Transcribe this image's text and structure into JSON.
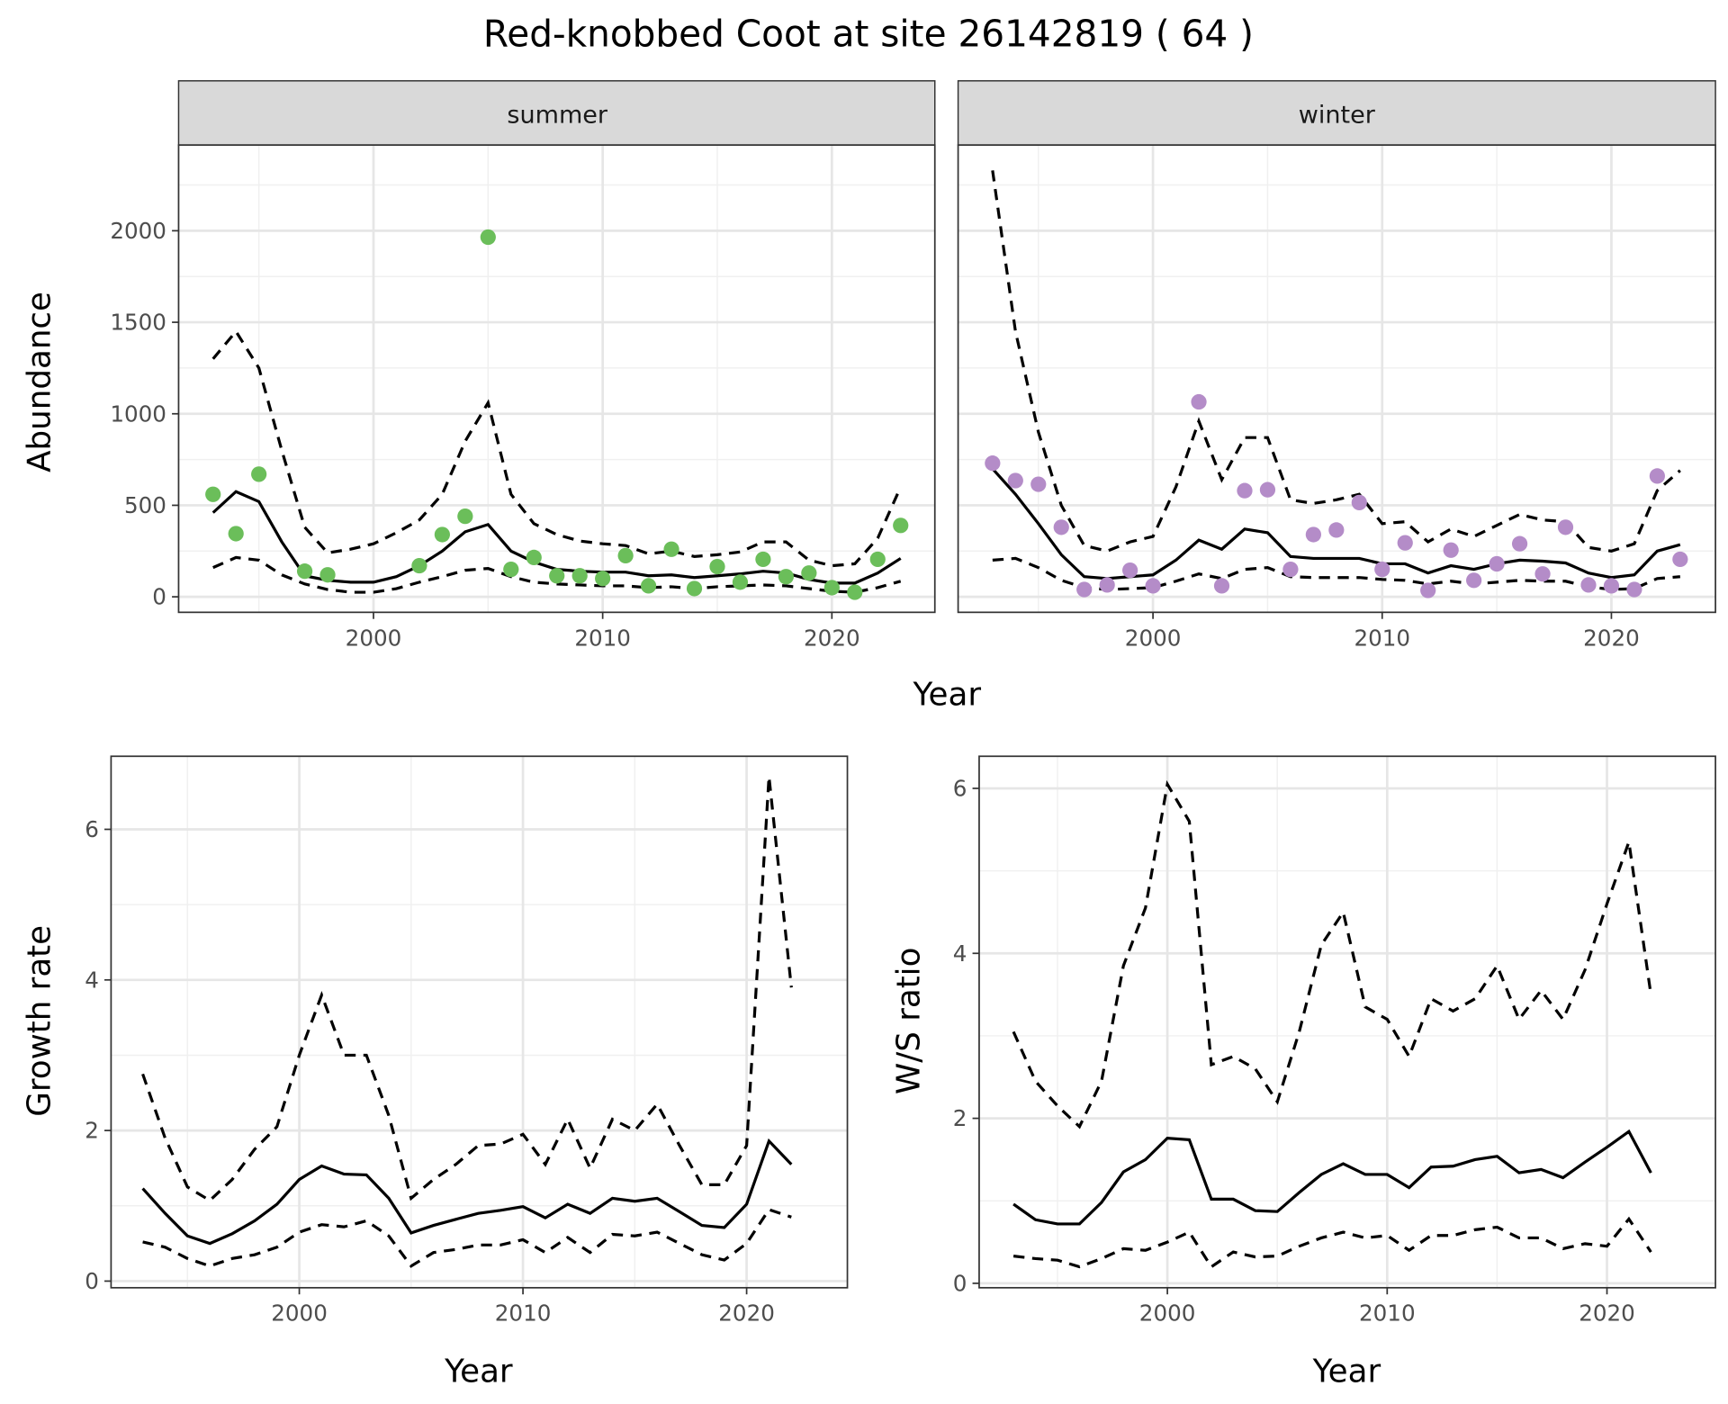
{
  "title": "Red-knobbed Coot at site 26142819 ( 64 )",
  "colors": {
    "summer": "#6BBE5A",
    "winter": "#B48CC8",
    "line": "#000000"
  },
  "chart_data": [
    {
      "type": "line+scatter",
      "facet": "summer",
      "xlabel": "Year",
      "ylabel": "Abundance",
      "x_ticks": [
        2000,
        2010,
        2020
      ],
      "y_ticks": [
        0,
        500,
        1000,
        1500,
        2000
      ],
      "years": [
        1993,
        1994,
        1995,
        1996,
        1997,
        1998,
        1999,
        2000,
        2001,
        2002,
        2003,
        2004,
        2005,
        2006,
        2007,
        2008,
        2009,
        2010,
        2011,
        2012,
        2013,
        2014,
        2015,
        2016,
        2017,
        2018,
        2019,
        2020,
        2021,
        2022,
        2023
      ],
      "mean": [
        460,
        575,
        520,
        300,
        115,
        90,
        80,
        80,
        110,
        170,
        250,
        355,
        395,
        250,
        190,
        150,
        140,
        135,
        135,
        115,
        120,
        105,
        115,
        125,
        140,
        130,
        95,
        75,
        75,
        130,
        210
      ],
      "upper": [
        1300,
        1450,
        1250,
        800,
        380,
        240,
        260,
        290,
        350,
        420,
        560,
        850,
        1060,
        560,
        400,
        340,
        305,
        290,
        280,
        235,
        250,
        220,
        230,
        245,
        300,
        300,
        200,
        170,
        180,
        320,
        600
      ],
      "lower": [
        160,
        215,
        200,
        120,
        70,
        40,
        25,
        25,
        45,
        80,
        110,
        145,
        155,
        110,
        80,
        70,
        65,
        60,
        60,
        50,
        55,
        45,
        55,
        60,
        65,
        60,
        45,
        30,
        25,
        50,
        85
      ],
      "points": {
        "years": [
          1993,
          1994,
          1995,
          1997,
          1998,
          2002,
          2003,
          2004,
          2005,
          2006,
          2007,
          2008,
          2009,
          2010,
          2011,
          2012,
          2013,
          2014,
          2015,
          2016,
          2017,
          2018,
          2019,
          2020,
          2021,
          2022,
          2023
        ],
        "values": [
          560,
          345,
          670,
          140,
          120,
          170,
          340,
          440,
          1965,
          150,
          215,
          115,
          115,
          100,
          225,
          60,
          260,
          45,
          165,
          80,
          205,
          110,
          130,
          50,
          25,
          205,
          390
        ]
      }
    },
    {
      "type": "line+scatter",
      "facet": "winter",
      "xlabel": "Year",
      "ylabel": "Abundance",
      "x_ticks": [
        2000,
        2010,
        2020
      ],
      "y_ticks": [
        0,
        500,
        1000,
        1500,
        2000
      ],
      "years": [
        1993,
        1994,
        1995,
        1996,
        1997,
        1998,
        1999,
        2000,
        2001,
        2002,
        2003,
        2004,
        2005,
        2006,
        2007,
        2008,
        2009,
        2010,
        2011,
        2012,
        2013,
        2014,
        2015,
        2016,
        2017,
        2018,
        2019,
        2020,
        2021,
        2022,
        2023
      ],
      "mean": [
        700,
        560,
        400,
        230,
        110,
        100,
        110,
        120,
        200,
        310,
        260,
        370,
        350,
        220,
        210,
        210,
        210,
        180,
        180,
        130,
        170,
        150,
        180,
        200,
        195,
        185,
        130,
        105,
        120,
        250,
        285
      ],
      "upper": [
        2330,
        1450,
        900,
        500,
        280,
        250,
        300,
        330,
        600,
        960,
        640,
        870,
        870,
        530,
        510,
        530,
        560,
        400,
        410,
        300,
        370,
        330,
        390,
        450,
        420,
        410,
        270,
        250,
        290,
        580,
        690
      ],
      "lower": [
        200,
        210,
        160,
        90,
        50,
        40,
        45,
        50,
        85,
        125,
        100,
        150,
        160,
        110,
        105,
        105,
        105,
        95,
        90,
        70,
        85,
        70,
        80,
        90,
        85,
        85,
        55,
        40,
        45,
        100,
        110
      ],
      "points": {
        "years": [
          1993,
          1994,
          1995,
          1996,
          1997,
          1998,
          1999,
          2000,
          2002,
          2003,
          2004,
          2005,
          2006,
          2007,
          2008,
          2009,
          2010,
          2011,
          2012,
          2013,
          2014,
          2015,
          2016,
          2017,
          2018,
          2019,
          2020,
          2021,
          2022,
          2023
        ],
        "values": [
          730,
          635,
          615,
          380,
          40,
          65,
          145,
          60,
          1065,
          60,
          580,
          585,
          150,
          340,
          365,
          515,
          150,
          295,
          35,
          255,
          90,
          180,
          290,
          125,
          380,
          65,
          60,
          40,
          660,
          205
        ]
      }
    },
    {
      "type": "line",
      "xlabel": "Year",
      "ylabel": "Growth rate",
      "x_ticks": [
        2000,
        2010,
        2020
      ],
      "y_ticks": [
        0,
        2,
        4,
        6
      ],
      "years": [
        1993,
        1994,
        1995,
        1996,
        1997,
        1998,
        1999,
        2000,
        2001,
        2002,
        2003,
        2004,
        2005,
        2006,
        2007,
        2008,
        2009,
        2010,
        2011,
        2012,
        2013,
        2014,
        2015,
        2016,
        2017,
        2018,
        2019,
        2020,
        2021,
        2022
      ],
      "mean": [
        1.23,
        0.9,
        0.6,
        0.5,
        0.63,
        0.8,
        1.02,
        1.35,
        1.53,
        1.42,
        1.41,
        1.1,
        0.64,
        0.74,
        0.82,
        0.9,
        0.94,
        0.99,
        0.84,
        1.02,
        0.9,
        1.1,
        1.06,
        1.1,
        0.92,
        0.74,
        0.71,
        1.02,
        1.86,
        1.55
      ],
      "upper": [
        2.75,
        1.9,
        1.25,
        1.07,
        1.35,
        1.75,
        2.05,
        3.0,
        3.8,
        3.0,
        3.0,
        2.2,
        1.1,
        1.35,
        1.55,
        1.8,
        1.82,
        1.95,
        1.55,
        2.15,
        1.5,
        2.15,
        2.0,
        2.35,
        1.8,
        1.28,
        1.28,
        1.8,
        6.7,
        3.9
      ],
      "lower": [
        0.52,
        0.45,
        0.3,
        0.2,
        0.3,
        0.35,
        0.45,
        0.65,
        0.75,
        0.72,
        0.8,
        0.6,
        0.2,
        0.38,
        0.42,
        0.48,
        0.48,
        0.55,
        0.38,
        0.58,
        0.38,
        0.62,
        0.6,
        0.65,
        0.5,
        0.35,
        0.28,
        0.5,
        0.95,
        0.85
      ]
    },
    {
      "type": "line",
      "xlabel": "Year",
      "ylabel": "W/S ratio",
      "x_ticks": [
        2000,
        2010,
        2020
      ],
      "y_ticks": [
        0,
        2,
        4,
        6
      ],
      "years": [
        1993,
        1994,
        1995,
        1996,
        1997,
        1998,
        1999,
        2000,
        2001,
        2002,
        2003,
        2004,
        2005,
        2006,
        2007,
        2008,
        2009,
        2010,
        2011,
        2012,
        2013,
        2014,
        2015,
        2016,
        2017,
        2018,
        2019,
        2020,
        2021,
        2022
      ],
      "mean": [
        0.96,
        0.77,
        0.72,
        0.72,
        0.98,
        1.35,
        1.5,
        1.76,
        1.74,
        1.02,
        1.02,
        0.88,
        0.87,
        1.1,
        1.32,
        1.45,
        1.32,
        1.32,
        1.16,
        1.41,
        1.42,
        1.5,
        1.54,
        1.34,
        1.38,
        1.28,
        1.47,
        1.65,
        1.84,
        1.34
      ],
      "upper": [
        3.05,
        2.45,
        2.15,
        1.9,
        2.45,
        3.85,
        4.55,
        6.05,
        5.6,
        2.65,
        2.75,
        2.6,
        2.2,
        3.05,
        4.1,
        4.5,
        3.35,
        3.2,
        2.75,
        3.45,
        3.3,
        3.45,
        3.85,
        3.2,
        3.55,
        3.2,
        3.8,
        4.6,
        5.35,
        3.5
      ],
      "lower": [
        0.33,
        0.3,
        0.28,
        0.2,
        0.3,
        0.42,
        0.4,
        0.5,
        0.62,
        0.2,
        0.38,
        0.32,
        0.33,
        0.45,
        0.55,
        0.62,
        0.55,
        0.58,
        0.4,
        0.58,
        0.58,
        0.65,
        0.68,
        0.55,
        0.55,
        0.42,
        0.48,
        0.45,
        0.78,
        0.38
      ]
    }
  ]
}
